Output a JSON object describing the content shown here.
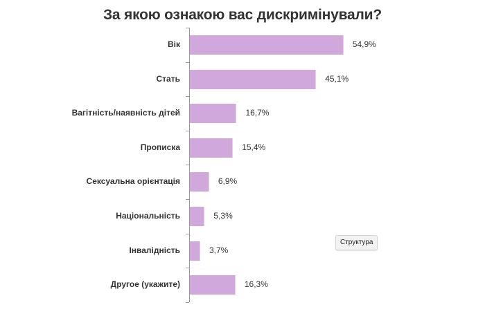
{
  "chart_data": {
    "type": "bar",
    "orientation": "horizontal",
    "title": "За якою ознакою вас дискримінували?",
    "xlabel": "",
    "ylabel": "",
    "categories": [
      "Вік",
      "Стать",
      "Вагітність/наявність дітей",
      "Прописка",
      "Сексуальна орієнтація",
      "Національність",
      "Інвалідність",
      "Другое (укажите)"
    ],
    "values": [
      54.9,
      45.1,
      16.7,
      15.4,
      6.9,
      5.3,
      3.7,
      16.3
    ],
    "value_labels": [
      "54,9%",
      "45,1%",
      "16,7%",
      "15,4%",
      "6,9%",
      "5,3%",
      "3,7%",
      "16,3%"
    ],
    "unit": "%",
    "xlim": [
      0,
      55
    ],
    "grid": false,
    "legend": null,
    "bar_color": "#d1a8dc"
  },
  "button": {
    "label": "Структура"
  }
}
